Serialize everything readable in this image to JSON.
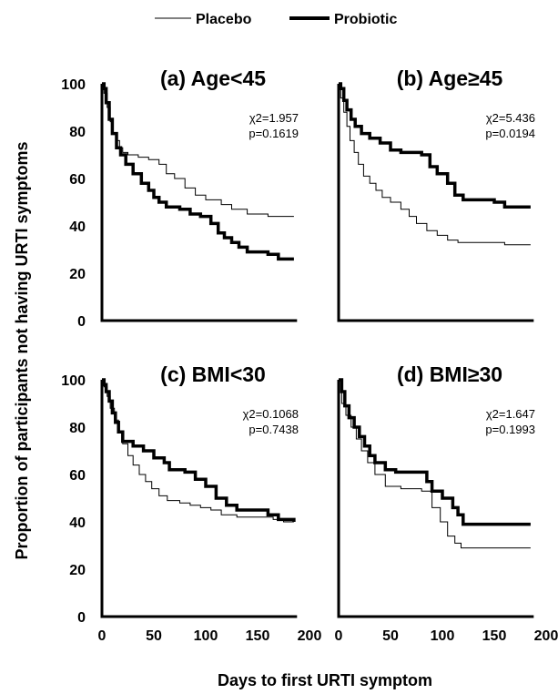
{
  "chart_data": {
    "type": "line",
    "step": true,
    "xlabel": "Days to first URTI symptom",
    "ylabel": "Proportion of participants not having URTI symptoms",
    "xlim": [
      0,
      200
    ],
    "ylim": [
      0,
      100
    ],
    "xticks": [
      "0",
      "50",
      "100",
      "150",
      "200"
    ],
    "yticks": [
      "0",
      "20",
      "40",
      "60",
      "80",
      "100"
    ],
    "legend": {
      "position": "top-center",
      "entries": [
        {
          "name": "Placebo",
          "style": "thin",
          "color": "#000000"
        },
        {
          "name": "Probiotic",
          "style": "thick",
          "color": "#000000"
        }
      ]
    },
    "panels": [
      {
        "title": "(a) Age<45",
        "stat1": "χ2=1.957",
        "stat2": "p=0.1619",
        "series": [
          {
            "name": "Placebo",
            "points": [
              [
                0,
                100
              ],
              [
                2,
                96
              ],
              [
                5,
                90
              ],
              [
                8,
                84
              ],
              [
                11,
                79
              ],
              [
                14,
                76
              ],
              [
                17,
                73
              ],
              [
                20,
                71
              ],
              [
                25,
                70
              ],
              [
                35,
                69
              ],
              [
                45,
                68
              ],
              [
                55,
                66
              ],
              [
                62,
                62
              ],
              [
                70,
                60
              ],
              [
                80,
                56
              ],
              [
                90,
                53
              ],
              [
                100,
                51
              ],
              [
                115,
                49
              ],
              [
                125,
                47
              ],
              [
                140,
                45
              ],
              [
                160,
                44
              ],
              [
                185,
                44
              ]
            ]
          },
          {
            "name": "Probiotic",
            "points": [
              [
                0,
                100
              ],
              [
                2,
                98
              ],
              [
                4,
                92
              ],
              [
                7,
                85
              ],
              [
                10,
                79
              ],
              [
                14,
                73
              ],
              [
                18,
                70
              ],
              [
                23,
                66
              ],
              [
                30,
                62
              ],
              [
                38,
                58
              ],
              [
                45,
                55
              ],
              [
                50,
                52
              ],
              [
                55,
                50
              ],
              [
                62,
                48
              ],
              [
                75,
                47
              ],
              [
                85,
                45
              ],
              [
                95,
                44
              ],
              [
                105,
                41
              ],
              [
                112,
                37
              ],
              [
                118,
                35
              ],
              [
                125,
                33
              ],
              [
                132,
                31
              ],
              [
                140,
                29
              ],
              [
                160,
                28
              ],
              [
                170,
                26
              ],
              [
                185,
                26
              ]
            ]
          }
        ]
      },
      {
        "title": "(b) Age≥45",
        "stat1": "χ2=5.436",
        "stat2": "p=0.0194",
        "series": [
          {
            "name": "Placebo",
            "points": [
              [
                0,
                100
              ],
              [
                2,
                94
              ],
              [
                5,
                88
              ],
              [
                8,
                82
              ],
              [
                11,
                76
              ],
              [
                15,
                71
              ],
              [
                19,
                66
              ],
              [
                24,
                61
              ],
              [
                30,
                58
              ],
              [
                36,
                55
              ],
              [
                42,
                52
              ],
              [
                50,
                50
              ],
              [
                60,
                47
              ],
              [
                68,
                44
              ],
              [
                75,
                41
              ],
              [
                85,
                38
              ],
              [
                95,
                36
              ],
              [
                105,
                34
              ],
              [
                115,
                33
              ],
              [
                130,
                33
              ],
              [
                160,
                32
              ],
              [
                185,
                32
              ]
            ]
          },
          {
            "name": "Probiotic",
            "points": [
              [
                0,
                100
              ],
              [
                2,
                98
              ],
              [
                5,
                93
              ],
              [
                8,
                89
              ],
              [
                12,
                85
              ],
              [
                16,
                82
              ],
              [
                22,
                79
              ],
              [
                30,
                77
              ],
              [
                40,
                75
              ],
              [
                50,
                72
              ],
              [
                60,
                71
              ],
              [
                80,
                70
              ],
              [
                88,
                65
              ],
              [
                95,
                62
              ],
              [
                105,
                58
              ],
              [
                112,
                53
              ],
              [
                120,
                51
              ],
              [
                150,
                50
              ],
              [
                160,
                48
              ],
              [
                185,
                48
              ]
            ]
          }
        ]
      },
      {
        "title": "(c) BMI<30",
        "stat1": "χ2=0.1068",
        "stat2": "p=0.7438",
        "series": [
          {
            "name": "Placebo",
            "points": [
              [
                0,
                100
              ],
              [
                2,
                97
              ],
              [
                5,
                93
              ],
              [
                8,
                88
              ],
              [
                12,
                83
              ],
              [
                16,
                78
              ],
              [
                20,
                73
              ],
              [
                25,
                68
              ],
              [
                30,
                64
              ],
              [
                36,
                60
              ],
              [
                42,
                57
              ],
              [
                48,
                54
              ],
              [
                55,
                51
              ],
              [
                63,
                49
              ],
              [
                75,
                48
              ],
              [
                85,
                47
              ],
              [
                95,
                46
              ],
              [
                105,
                45
              ],
              [
                115,
                43
              ],
              [
                130,
                42
              ],
              [
                150,
                42
              ],
              [
                165,
                41
              ],
              [
                175,
                40
              ],
              [
                185,
                40
              ]
            ]
          },
          {
            "name": "Probiotic",
            "points": [
              [
                0,
                100
              ],
              [
                2,
                98
              ],
              [
                4,
                95
              ],
              [
                7,
                91
              ],
              [
                10,
                86
              ],
              [
                13,
                82
              ],
              [
                16,
                78
              ],
              [
                20,
                74
              ],
              [
                30,
                72
              ],
              [
                40,
                70
              ],
              [
                50,
                67
              ],
              [
                60,
                65
              ],
              [
                65,
                62
              ],
              [
                80,
                61
              ],
              [
                90,
                58
              ],
              [
                100,
                55
              ],
              [
                110,
                50
              ],
              [
                120,
                47
              ],
              [
                130,
                45
              ],
              [
                150,
                45
              ],
              [
                160,
                43
              ],
              [
                170,
                41
              ],
              [
                185,
                40
              ]
            ]
          }
        ]
      },
      {
        "title": "(d) BMI≥30",
        "stat1": "χ2=1.647",
        "stat2": "p=0.1993",
        "series": [
          {
            "name": "Placebo",
            "points": [
              [
                0,
                100
              ],
              [
                3,
                90
              ],
              [
                7,
                85
              ],
              [
                12,
                80
              ],
              [
                17,
                75
              ],
              [
                22,
                70
              ],
              [
                28,
                65
              ],
              [
                35,
                60
              ],
              [
                45,
                55
              ],
              [
                60,
                54
              ],
              [
                80,
                53
              ],
              [
                90,
                46
              ],
              [
                98,
                40
              ],
              [
                105,
                34
              ],
              [
                112,
                31
              ],
              [
                118,
                29
              ],
              [
                150,
                29
              ],
              [
                185,
                29
              ]
            ]
          },
          {
            "name": "Probiotic",
            "points": [
              [
                0,
                100
              ],
              [
                3,
                95
              ],
              [
                6,
                89
              ],
              [
                10,
                84
              ],
              [
                15,
                80
              ],
              [
                20,
                76
              ],
              [
                25,
                72
              ],
              [
                30,
                68
              ],
              [
                35,
                65
              ],
              [
                45,
                62
              ],
              [
                55,
                61
              ],
              [
                80,
                61
              ],
              [
                85,
                57
              ],
              [
                90,
                53
              ],
              [
                100,
                50
              ],
              [
                110,
                46
              ],
              [
                115,
                43
              ],
              [
                120,
                39
              ],
              [
                150,
                39
              ],
              [
                185,
                39
              ]
            ]
          }
        ]
      }
    ]
  }
}
